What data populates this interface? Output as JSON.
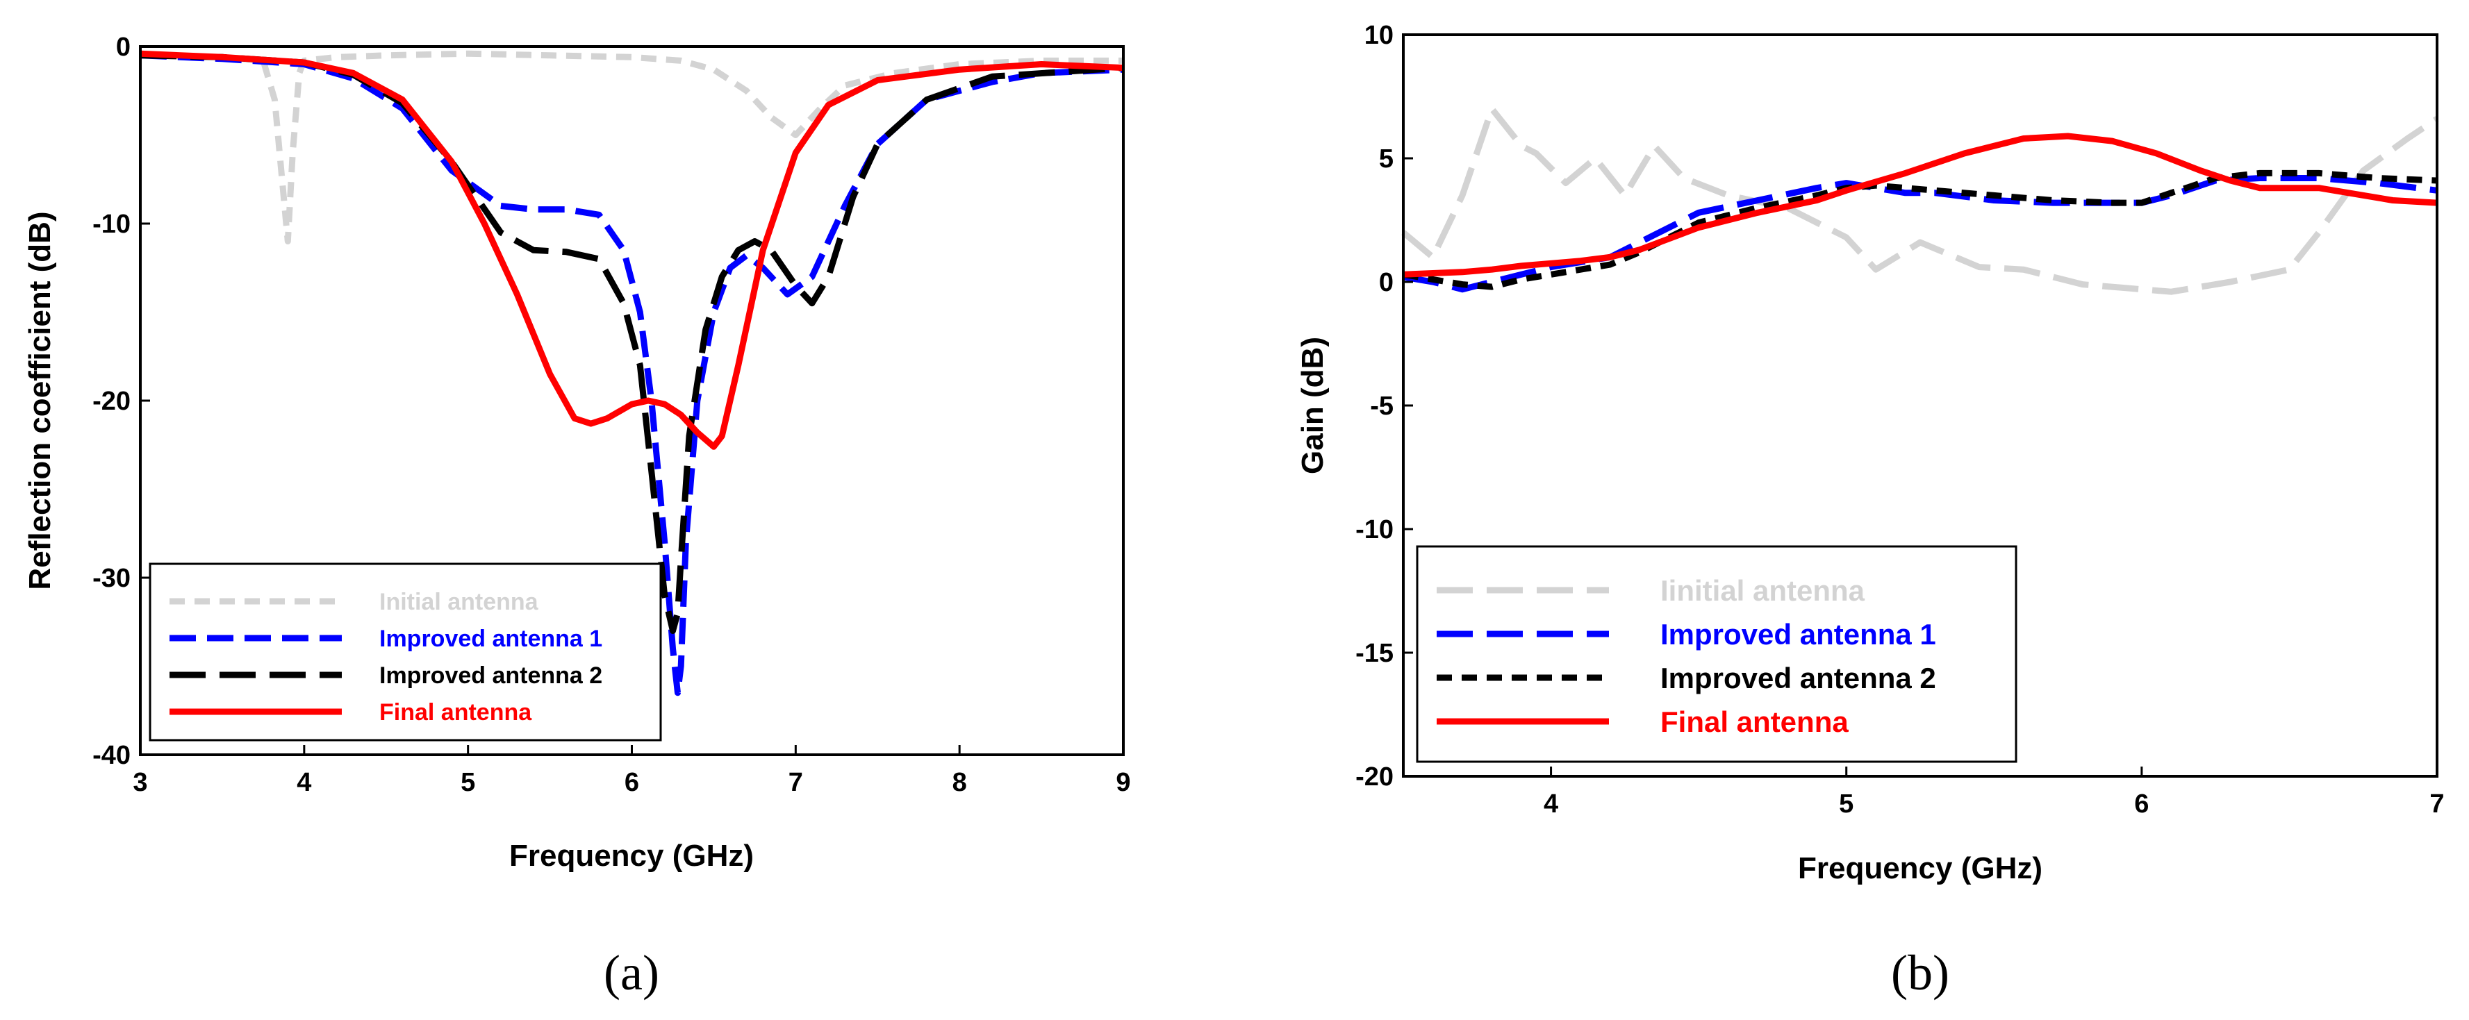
{
  "chart_data": [
    {
      "type": "line",
      "caption": "(a)",
      "xlabel": "Frequency (GHz)",
      "ylabel": "Reflection coefficient (dB)",
      "xlim": [
        3,
        9
      ],
      "ylim": [
        -40,
        0
      ],
      "xticks": [
        "3",
        "4",
        "5",
        "6",
        "7",
        "8",
        "9"
      ],
      "yticks": [
        "0",
        "-10",
        "-20",
        "-30",
        "-40"
      ],
      "legend_position": "bottom-left",
      "series": [
        {
          "name": "Initial antenna",
          "color": "#d3d3d3",
          "style": "short-dash",
          "x": [
            3,
            3.5,
            3.75,
            3.82,
            3.87,
            3.9,
            3.93,
            3.97,
            4,
            4.2,
            4.5,
            5,
            5.5,
            6,
            6.3,
            6.5,
            6.7,
            6.85,
            7,
            7.15,
            7.3,
            7.6,
            8,
            8.5,
            9
          ],
          "y": [
            -0.5,
            -0.6,
            -0.8,
            -3,
            -8,
            -11,
            -6,
            -1.5,
            -0.8,
            -0.6,
            -0.5,
            -0.4,
            -0.5,
            -0.6,
            -0.8,
            -1.3,
            -2.5,
            -4,
            -5,
            -3.5,
            -2.2,
            -1.5,
            -1,
            -0.8,
            -0.8
          ]
        },
        {
          "name": "Improved antenna 1",
          "color": "#0000ff",
          "style": "dash",
          "x": [
            3,
            3.5,
            4,
            4.3,
            4.6,
            4.9,
            5.2,
            5.4,
            5.6,
            5.8,
            5.95,
            6.05,
            6.12,
            6.2,
            6.25,
            6.28,
            6.3,
            6.33,
            6.4,
            6.5,
            6.6,
            6.7,
            6.8,
            6.95,
            7.1,
            7.3,
            7.5,
            7.8,
            8.2,
            8.5,
            9
          ],
          "y": [
            -0.5,
            -0.7,
            -1,
            -1.8,
            -3.5,
            -7,
            -9,
            -9.2,
            -9.2,
            -9.5,
            -11.5,
            -15,
            -20,
            -28,
            -34,
            -36.5,
            -35,
            -28,
            -20,
            -15,
            -12.5,
            -11.8,
            -12.5,
            -14,
            -13,
            -9,
            -5.5,
            -3,
            -2,
            -1.5,
            -1.3
          ]
        },
        {
          "name": "Improved antenna 2",
          "color": "#000000",
          "style": "long-dash",
          "x": [
            3,
            3.5,
            4,
            4.3,
            4.6,
            4.9,
            5.2,
            5.4,
            5.6,
            5.8,
            5.95,
            6.05,
            6.12,
            6.2,
            6.25,
            6.28,
            6.3,
            6.35,
            6.45,
            6.55,
            6.65,
            6.75,
            6.85,
            7,
            7.1,
            7.2,
            7.35,
            7.5,
            7.8,
            8.2,
            9
          ],
          "y": [
            -0.5,
            -0.6,
            -0.9,
            -1.6,
            -3.2,
            -6.5,
            -10.5,
            -11.5,
            -11.6,
            -12,
            -14.5,
            -18,
            -24,
            -31,
            -33,
            -32,
            -29,
            -22,
            -16,
            -13,
            -11.5,
            -11,
            -11.5,
            -13.5,
            -14.5,
            -13,
            -8.5,
            -5.5,
            -3,
            -1.7,
            -1.2
          ]
        },
        {
          "name": "Final antenna",
          "color": "#ff0000",
          "style": "solid",
          "x": [
            3,
            3.5,
            4,
            4.3,
            4.6,
            4.9,
            5.1,
            5.3,
            5.5,
            5.65,
            5.75,
            5.85,
            6,
            6.1,
            6.2,
            6.3,
            6.4,
            6.5,
            6.55,
            6.65,
            6.8,
            7,
            7.2,
            7.5,
            8,
            8.5,
            9
          ],
          "y": [
            -0.4,
            -0.6,
            -0.9,
            -1.5,
            -3,
            -6.5,
            -10,
            -14,
            -18.5,
            -21,
            -21.3,
            -21,
            -20.2,
            -20,
            -20.2,
            -20.8,
            -21.8,
            -22.6,
            -22,
            -18,
            -11.5,
            -6,
            -3.3,
            -1.9,
            -1.3,
            -1,
            -1.2
          ]
        }
      ]
    },
    {
      "type": "line",
      "caption": "(b)",
      "xlabel": "Frequency (GHz)",
      "ylabel": "Gain (dB)",
      "xlim": [
        3.5,
        7
      ],
      "ylim": [
        -20,
        10
      ],
      "xticks": [
        "4",
        "5",
        "6",
        "7"
      ],
      "yticks": [
        "10",
        "5",
        "0",
        "-5",
        "-10",
        "-15",
        "-20"
      ],
      "legend_position": "bottom-left",
      "series": [
        {
          "name": "Iinitial antenna",
          "color": "#d3d3d3",
          "style": "long-dash",
          "x": [
            3.5,
            3.6,
            3.7,
            3.8,
            3.9,
            3.95,
            4.05,
            4.15,
            4.25,
            4.35,
            4.45,
            4.6,
            4.8,
            5,
            5.1,
            5.25,
            5.45,
            5.6,
            5.8,
            6,
            6.1,
            6.3,
            6.5,
            6.6,
            6.75,
            6.9,
            7
          ],
          "y": [
            2,
            1,
            3.5,
            7,
            5.5,
            5.2,
            4,
            5,
            3.5,
            5.5,
            4.2,
            3.5,
            3,
            1.8,
            0.5,
            1.6,
            0.6,
            0.5,
            -0.1,
            -0.3,
            -0.4,
            0,
            0.5,
            2,
            4.5,
            5.8,
            6.6
          ]
        },
        {
          "name": "Improved antenna 1",
          "color": "#0000ff",
          "style": "long-dash",
          "x": [
            3.5,
            3.6,
            3.7,
            3.8,
            3.9,
            4,
            4.1,
            4.2,
            4.3,
            4.5,
            4.7,
            4.9,
            5,
            5.1,
            5.2,
            5.3,
            5.5,
            5.7,
            5.9,
            6,
            6.1,
            6.25,
            6.4,
            6.5,
            6.6,
            6.8,
            7
          ],
          "y": [
            0.2,
            0,
            -0.3,
            0,
            0.3,
            0.6,
            0.8,
            1,
            1.6,
            2.8,
            3.3,
            3.8,
            4,
            3.8,
            3.6,
            3.6,
            3.3,
            3.2,
            3.2,
            3.2,
            3.5,
            4.1,
            4.2,
            4.2,
            4.2,
            4,
            3.7
          ]
        },
        {
          "name": "Improved antenna 2",
          "color": "#000000",
          "style": "short-dash",
          "x": [
            3.5,
            3.6,
            3.7,
            3.8,
            3.9,
            4,
            4.1,
            4.2,
            4.3,
            4.5,
            4.7,
            4.9,
            5,
            5.1,
            5.2,
            5.3,
            5.5,
            5.7,
            5.9,
            6,
            6.1,
            6.25,
            6.4,
            6.5,
            6.6,
            6.8,
            7
          ],
          "y": [
            0.3,
            0.1,
            -0.1,
            -0.2,
            0.1,
            0.3,
            0.5,
            0.7,
            1.2,
            2.4,
            3,
            3.5,
            3.8,
            3.9,
            3.8,
            3.7,
            3.5,
            3.3,
            3.2,
            3.2,
            3.6,
            4.2,
            4.4,
            4.4,
            4.4,
            4.2,
            4.1
          ]
        },
        {
          "name": "Final antenna",
          "color": "#ff0000",
          "style": "solid",
          "x": [
            3.5,
            3.6,
            3.7,
            3.8,
            3.9,
            4,
            4.1,
            4.2,
            4.3,
            4.5,
            4.7,
            4.9,
            5,
            5.2,
            5.4,
            5.6,
            5.75,
            5.9,
            6.05,
            6.2,
            6.3,
            6.4,
            6.5,
            6.6,
            6.7,
            6.85,
            7
          ],
          "y": [
            0.3,
            0.35,
            0.4,
            0.5,
            0.65,
            0.75,
            0.85,
            1,
            1.3,
            2.2,
            2.8,
            3.3,
            3.7,
            4.4,
            5.2,
            5.8,
            5.9,
            5.7,
            5.2,
            4.5,
            4.1,
            3.8,
            3.8,
            3.8,
            3.6,
            3.3,
            3.2
          ]
        }
      ]
    }
  ]
}
